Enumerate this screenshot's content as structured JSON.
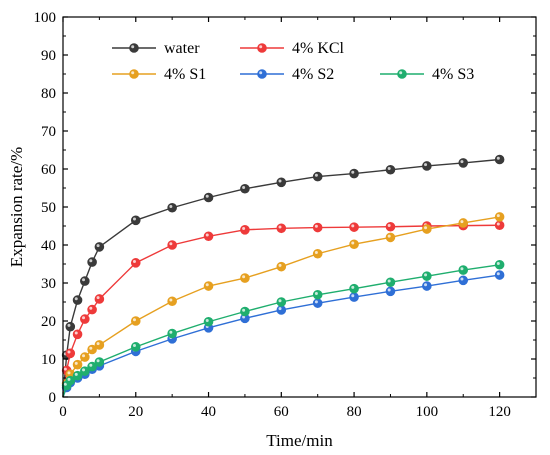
{
  "chart_data": {
    "type": "line",
    "xlabel": "Time/min",
    "ylabel": "Expansion rate/%",
    "xlim": [
      0,
      130
    ],
    "ylim": [
      0,
      100
    ],
    "xticks": [
      0,
      20,
      40,
      60,
      80,
      100,
      120
    ],
    "yticks": [
      0,
      10,
      20,
      30,
      40,
      50,
      60,
      70,
      80,
      90,
      100
    ],
    "grid": false,
    "legend_position": "top-left",
    "series": [
      {
        "name": "water",
        "color": "#3a3a3a",
        "points": [
          [
            0,
            0
          ],
          [
            1,
            11
          ],
          [
            2,
            18.5
          ],
          [
            4,
            25.5
          ],
          [
            6,
            30.5
          ],
          [
            8,
            35.5
          ],
          [
            10,
            39.5
          ],
          [
            20,
            46.5
          ],
          [
            30,
            49.8
          ],
          [
            40,
            52.5
          ],
          [
            50,
            54.8
          ],
          [
            60,
            56.5
          ],
          [
            70,
            58
          ],
          [
            80,
            58.8
          ],
          [
            90,
            59.8
          ],
          [
            100,
            60.8
          ],
          [
            110,
            61.6
          ],
          [
            120,
            62.5
          ]
        ]
      },
      {
        "name": "4% KCl",
        "color": "#ee3a3a",
        "points": [
          [
            0,
            0
          ],
          [
            1,
            7
          ],
          [
            2,
            11.5
          ],
          [
            4,
            16.5
          ],
          [
            6,
            20.5
          ],
          [
            8,
            23
          ],
          [
            10,
            25.8
          ],
          [
            20,
            35.3
          ],
          [
            30,
            40
          ],
          [
            40,
            42.3
          ],
          [
            50,
            44
          ],
          [
            60,
            44.4
          ],
          [
            70,
            44.6
          ],
          [
            80,
            44.7
          ],
          [
            90,
            44.8
          ],
          [
            100,
            45
          ],
          [
            110,
            45.1
          ],
          [
            120,
            45.2
          ]
        ]
      },
      {
        "name": "4% S1",
        "color": "#e6a020",
        "points": [
          [
            0,
            0
          ],
          [
            1,
            3.5
          ],
          [
            2,
            6
          ],
          [
            4,
            8.5
          ],
          [
            6,
            10.5
          ],
          [
            8,
            12.5
          ],
          [
            10,
            13.7
          ],
          [
            20,
            20
          ],
          [
            30,
            25.2
          ],
          [
            40,
            29.2
          ],
          [
            50,
            31.3
          ],
          [
            60,
            34.3
          ],
          [
            70,
            37.7
          ],
          [
            80,
            40.2
          ],
          [
            90,
            42
          ],
          [
            100,
            44.2
          ],
          [
            110,
            45.8
          ],
          [
            120,
            47.4
          ]
        ]
      },
      {
        "name": "4% S2",
        "color": "#2f6fd6",
        "points": [
          [
            0,
            0
          ],
          [
            1,
            2.5
          ],
          [
            2,
            3.8
          ],
          [
            4,
            5
          ],
          [
            6,
            6
          ],
          [
            8,
            7.3
          ],
          [
            10,
            8.2
          ],
          [
            20,
            12
          ],
          [
            30,
            15.3
          ],
          [
            40,
            18.2
          ],
          [
            50,
            20.7
          ],
          [
            60,
            22.9
          ],
          [
            70,
            24.7
          ],
          [
            80,
            26.3
          ],
          [
            90,
            27.8
          ],
          [
            100,
            29.2
          ],
          [
            110,
            30.7
          ],
          [
            120,
            32.1
          ]
        ]
      },
      {
        "name": "4% S3",
        "color": "#1fae6e",
        "points": [
          [
            0,
            0
          ],
          [
            1,
            3
          ],
          [
            2,
            4.3
          ],
          [
            4,
            5.6
          ],
          [
            6,
            6.8
          ],
          [
            8,
            8
          ],
          [
            10,
            9.2
          ],
          [
            20,
            13.2
          ],
          [
            30,
            16.7
          ],
          [
            40,
            19.8
          ],
          [
            50,
            22.5
          ],
          [
            60,
            25
          ],
          [
            70,
            26.9
          ],
          [
            80,
            28.5
          ],
          [
            90,
            30.2
          ],
          [
            100,
            31.8
          ],
          [
            110,
            33.4
          ],
          [
            120,
            34.8
          ]
        ]
      }
    ]
  }
}
